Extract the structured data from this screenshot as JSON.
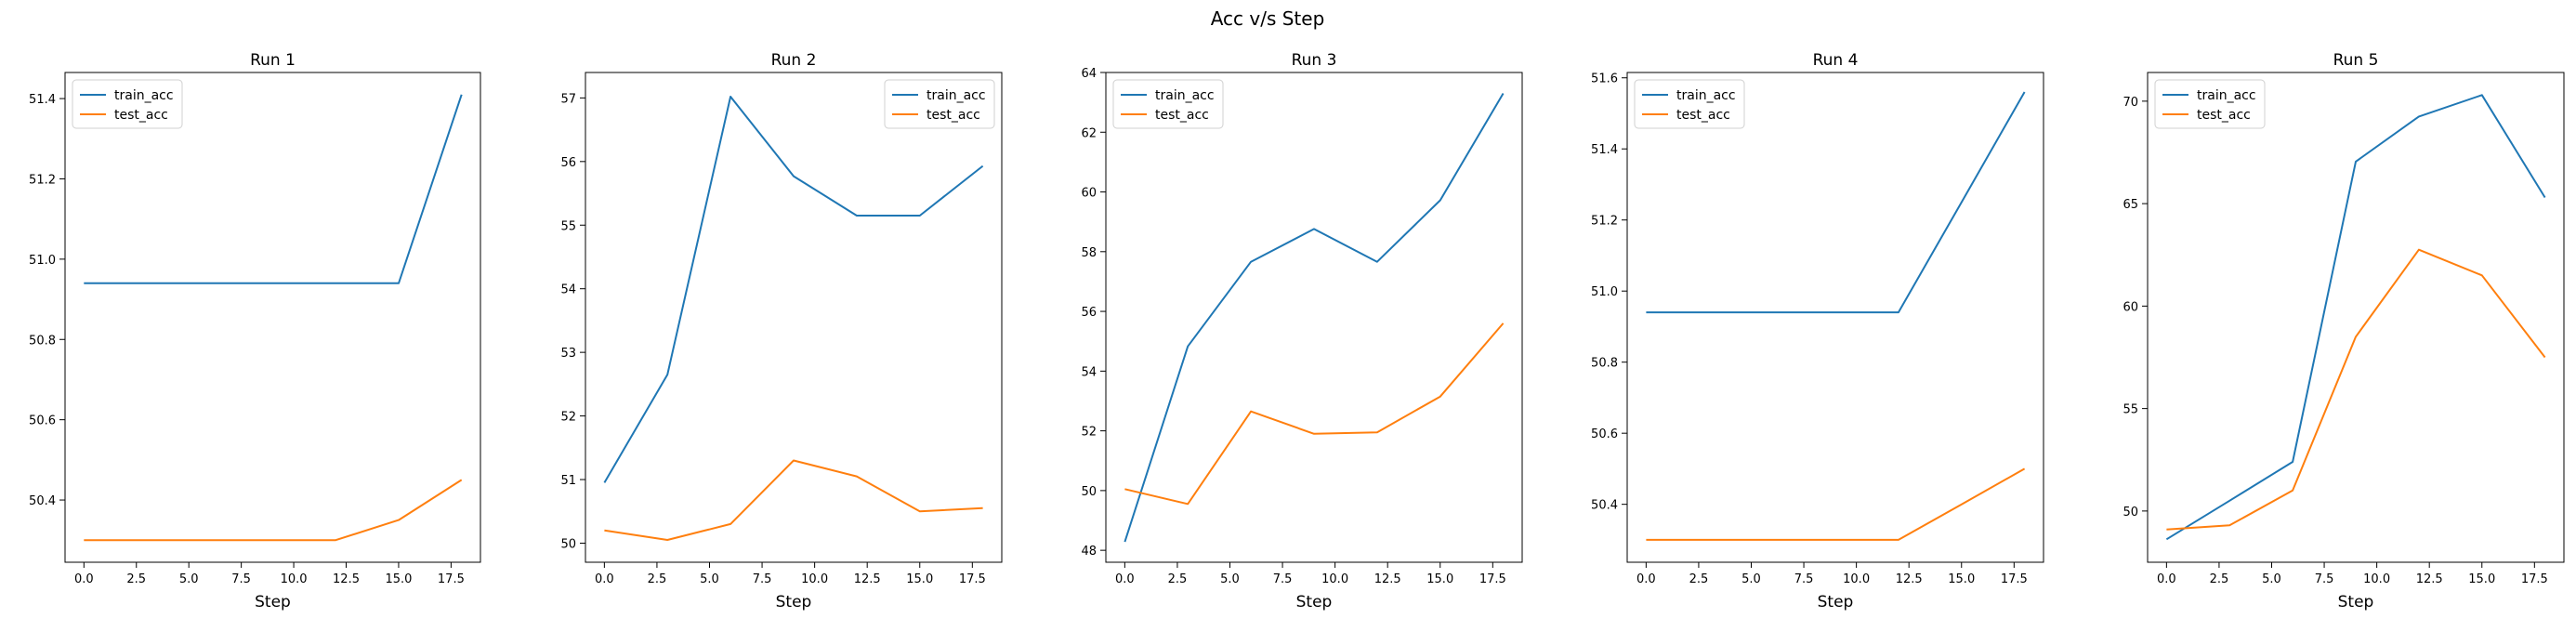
{
  "figure_title": "Acc v/s Step",
  "colors": {
    "train_acc": "#1f77b4",
    "test_acc": "#ff7f0e"
  },
  "chart_data": [
    {
      "type": "line",
      "title": "Run 1",
      "xlabel": "Step",
      "ylabel": "",
      "xlim": [
        -0.9,
        18.9
      ],
      "ylim": [
        50.245,
        51.465
      ],
      "xticks": [
        "0.0",
        "2.5",
        "5.0",
        "7.5",
        "10.0",
        "12.5",
        "15.0",
        "17.5"
      ],
      "yticks": [
        "50.4",
        "50.6",
        "50.8",
        "51.0",
        "51.2",
        "51.4"
      ],
      "legend": "top-left",
      "grid": false,
      "x": [
        0,
        3,
        6,
        9,
        12,
        15,
        18
      ],
      "series": [
        {
          "name": "train_acc",
          "values": [
            50.94,
            50.94,
            50.94,
            50.94,
            50.94,
            50.94,
            51.41
          ]
        },
        {
          "name": "test_acc",
          "values": [
            50.3,
            50.3,
            50.3,
            50.3,
            50.3,
            50.35,
            50.45
          ]
        }
      ]
    },
    {
      "type": "line",
      "title": "Run 2",
      "xlabel": "Step",
      "ylabel": "",
      "xlim": [
        -0.9,
        18.9
      ],
      "ylim": [
        49.7,
        57.4
      ],
      "xticks": [
        "0.0",
        "2.5",
        "5.0",
        "7.5",
        "10.0",
        "12.5",
        "15.0",
        "17.5"
      ],
      "yticks": [
        "50",
        "51",
        "52",
        "53",
        "54",
        "55",
        "56",
        "57"
      ],
      "legend": "top-right",
      "grid": false,
      "x": [
        0,
        3,
        6,
        9,
        12,
        15,
        18
      ],
      "series": [
        {
          "name": "train_acc",
          "values": [
            50.95,
            52.65,
            57.02,
            55.77,
            55.15,
            55.15,
            55.93
          ]
        },
        {
          "name": "test_acc",
          "values": [
            50.2,
            50.05,
            50.3,
            51.3,
            51.05,
            50.5,
            50.55
          ]
        }
      ]
    },
    {
      "type": "line",
      "title": "Run 3",
      "xlabel": "Step",
      "ylabel": "",
      "xlim": [
        -0.9,
        18.9
      ],
      "ylim": [
        47.6,
        64.0
      ],
      "xticks": [
        "0.0",
        "2.5",
        "5.0",
        "7.5",
        "10.0",
        "12.5",
        "15.0",
        "17.5"
      ],
      "yticks": [
        "48",
        "50",
        "52",
        "54",
        "56",
        "58",
        "60",
        "62",
        "64"
      ],
      "legend": "top-left",
      "grid": false,
      "x": [
        0,
        3,
        6,
        9,
        12,
        15,
        18
      ],
      "series": [
        {
          "name": "train_acc",
          "values": [
            48.28,
            54.83,
            57.66,
            58.76,
            57.66,
            59.72,
            63.3
          ]
        },
        {
          "name": "test_acc",
          "values": [
            50.05,
            49.55,
            52.65,
            51.9,
            51.95,
            53.15,
            55.6
          ]
        }
      ]
    },
    {
      "type": "line",
      "title": "Run 4",
      "xlabel": "Step",
      "ylabel": "",
      "xlim": [
        -0.9,
        18.9
      ],
      "ylim": [
        50.237,
        51.615
      ],
      "xticks": [
        "0.0",
        "2.5",
        "5.0",
        "7.5",
        "10.0",
        "12.5",
        "15.0",
        "17.5"
      ],
      "yticks": [
        "50.4",
        "50.6",
        "50.8",
        "51.0",
        "51.2",
        "51.4",
        "51.6"
      ],
      "legend": "top-left",
      "grid": false,
      "x": [
        0,
        3,
        6,
        9,
        12,
        15,
        18
      ],
      "series": [
        {
          "name": "train_acc",
          "values": [
            50.94,
            50.94,
            50.94,
            50.94,
            50.94,
            51.25,
            51.56
          ]
        },
        {
          "name": "test_acc",
          "values": [
            50.3,
            50.3,
            50.3,
            50.3,
            50.3,
            50.4,
            50.5
          ]
        }
      ]
    },
    {
      "type": "line",
      "title": "Run 5",
      "xlabel": "Step",
      "ylabel": "",
      "xlim": [
        -0.9,
        18.9
      ],
      "ylim": [
        47.5,
        71.4
      ],
      "xticks": [
        "0.0",
        "2.5",
        "5.0",
        "7.5",
        "10.0",
        "12.5",
        "15.0",
        "17.5"
      ],
      "yticks": [
        "50",
        "55",
        "60",
        "65",
        "70"
      ],
      "legend": "top-left",
      "grid": false,
      "x": [
        0,
        3,
        6,
        9,
        12,
        15,
        18
      ],
      "series": [
        {
          "name": "train_acc",
          "values": [
            48.62,
            50.5,
            52.4,
            67.05,
            69.25,
            70.3,
            65.3
          ]
        },
        {
          "name": "test_acc",
          "values": [
            49.1,
            49.3,
            51.0,
            58.5,
            62.75,
            61.5,
            57.5
          ]
        }
      ]
    }
  ]
}
